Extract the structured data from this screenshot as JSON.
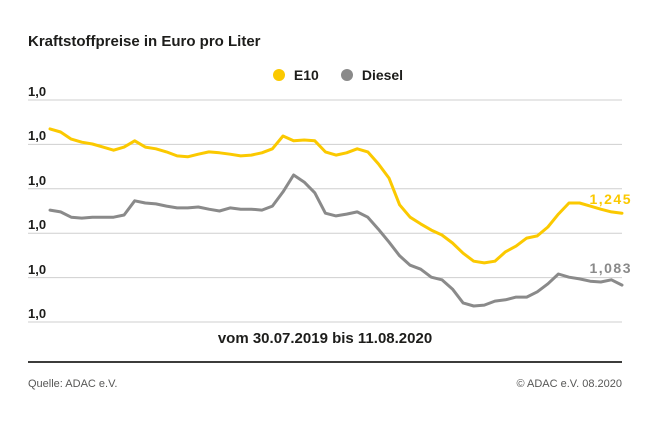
{
  "title": "Kraftstoffpreise in Euro pro Liter",
  "legend": [
    {
      "label": "E10",
      "color": "#FBC900"
    },
    {
      "label": "Diesel",
      "color": "#8A8A8A"
    }
  ],
  "y_axis": {
    "tick_labels": [
      "1,0",
      "1,0",
      "1,0",
      "1,0",
      "1,0",
      "1,0"
    ]
  },
  "value_labels": {
    "e10": "1,245",
    "diesel": "1,083"
  },
  "caption": "vom 30.07.2019 bis 11.08.2020",
  "footer": {
    "source": "Quelle: ADAC e.V.",
    "copyright": "© ADAC e.V. 08.2020"
  },
  "colors": {
    "e10": "#FBC900",
    "diesel": "#8A8A8A",
    "gridline": "#CFCFCF",
    "text": "#1d1d1b",
    "footer_text": "#575756",
    "divider": "#3c3c3b"
  },
  "chart_data": {
    "type": "line",
    "title": "Kraftstoffpreise in Euro pro Liter",
    "unit": "Euro pro Liter",
    "x_range_label": "vom 30.07.2019 bis 11.08.2020",
    "x_start": "30.07.2019",
    "x_end": "11.08.2020",
    "grid": true,
    "legend_position": "top-center",
    "y_gridline_labels_shown": [
      "1,0",
      "1,0",
      "1,0",
      "1,0",
      "1,0",
      "1,0"
    ],
    "implied_ylim": [
      1.0,
      1.5
    ],
    "series": [
      {
        "name": "E10",
        "color": "#FBC900",
        "end_label": "1,245",
        "end_value": 1.245,
        "values": [
          1.435,
          1.428,
          1.412,
          1.405,
          1.401,
          1.394,
          1.387,
          1.394,
          1.408,
          1.394,
          1.39,
          1.383,
          1.374,
          1.372,
          1.378,
          1.383,
          1.381,
          1.378,
          1.374,
          1.376,
          1.381,
          1.39,
          1.419,
          1.408,
          1.41,
          1.408,
          1.383,
          1.376,
          1.381,
          1.39,
          1.383,
          1.356,
          1.324,
          1.264,
          1.236,
          1.221,
          1.207,
          1.196,
          1.178,
          1.155,
          1.137,
          1.133,
          1.137,
          1.158,
          1.171,
          1.189,
          1.194,
          1.214,
          1.243,
          1.268,
          1.268,
          1.261,
          1.254,
          1.248,
          1.245
        ]
      },
      {
        "name": "Diesel",
        "color": "#8A8A8A",
        "end_label": "1,083",
        "end_value": 1.083,
        "values": [
          1.252,
          1.248,
          1.236,
          1.234,
          1.236,
          1.236,
          1.236,
          1.241,
          1.273,
          1.268,
          1.266,
          1.261,
          1.257,
          1.257,
          1.259,
          1.254,
          1.25,
          1.257,
          1.254,
          1.254,
          1.252,
          1.261,
          1.293,
          1.331,
          1.315,
          1.291,
          1.245,
          1.239,
          1.243,
          1.248,
          1.236,
          1.209,
          1.18,
          1.149,
          1.128,
          1.119,
          1.101,
          1.095,
          1.074,
          1.043,
          1.036,
          1.038,
          1.047,
          1.05,
          1.056,
          1.056,
          1.068,
          1.086,
          1.108,
          1.101,
          1.097,
          1.092,
          1.09,
          1.095,
          1.083
        ]
      }
    ]
  }
}
